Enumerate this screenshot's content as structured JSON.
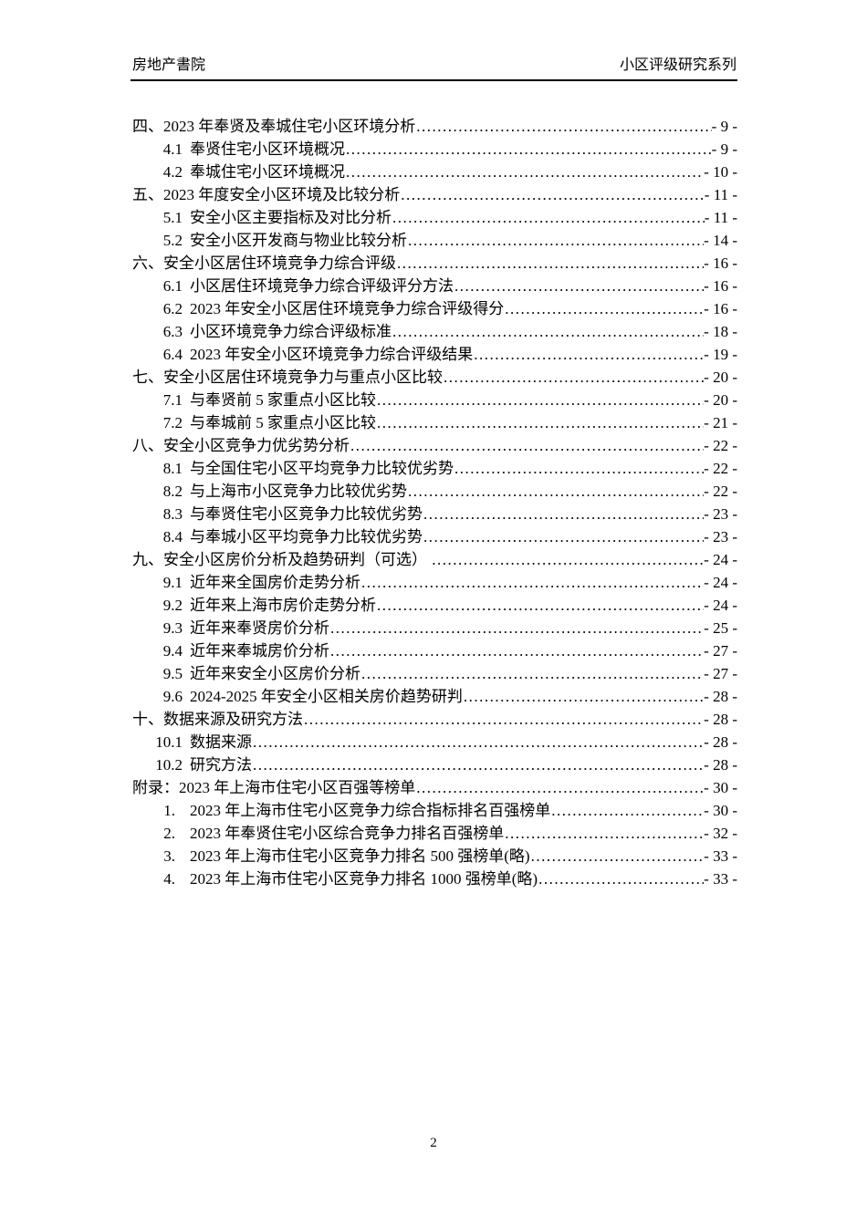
{
  "header": {
    "left": "房地产書院",
    "right": "小区评级研究系列"
  },
  "footer": {
    "page_number": "2"
  },
  "toc": {
    "entries": [
      {
        "level": 1,
        "num": "四、",
        "title": "2023 年奉贤及奉城住宅小区环境分析",
        "page": "- 9 -"
      },
      {
        "level": 2,
        "num": "4.1",
        "title": "奉贤住宅小区环境概况",
        "page": "- 9 -"
      },
      {
        "level": 2,
        "num": "4.2",
        "title": "奉城住宅小区环境概况",
        "page": "- 10 -"
      },
      {
        "level": 1,
        "num": "五、",
        "title": "2023 年度安全小区环境及比较分析",
        "page": "- 11 -"
      },
      {
        "level": 2,
        "num": "5.1",
        "title": "安全小区主要指标及对比分析",
        "page": "- 11 -"
      },
      {
        "level": 2,
        "num": "5.2",
        "title": "安全小区开发商与物业比较分析",
        "page": "- 14 -"
      },
      {
        "level": 1,
        "num": "六、",
        "title": "安全小区居住环境竞争力综合评级",
        "page": "- 16 -"
      },
      {
        "level": 2,
        "num": "6.1",
        "title": "小区居住环境竞争力综合评级评分方法",
        "page": "- 16 -"
      },
      {
        "level": 2,
        "num": "6.2",
        "title": "2023 年安全小区居住环境竞争力综合评级得分",
        "page": "- 16 -"
      },
      {
        "level": 2,
        "num": "6.3",
        "title": "小区环境竞争力综合评级标准",
        "page": "- 18 -"
      },
      {
        "level": 2,
        "num": "6.4",
        "title": "2023 年安全小区环境竞争力综合评级结果",
        "page": "- 19 -"
      },
      {
        "level": 1,
        "num": "七、",
        "title": "安全小区居住环境竞争力与重点小区比较",
        "page": "- 20 -"
      },
      {
        "level": 2,
        "num": "7.1",
        "title": "与奉贤前 5 家重点小区比较",
        "page": "- 20 -"
      },
      {
        "level": 2,
        "num": "7.2",
        "title": "与奉城前 5 家重点小区比较",
        "page": "- 21 -"
      },
      {
        "level": 1,
        "num": "八、",
        "title": "安全小区竞争力优劣势分析",
        "page": "- 22 -"
      },
      {
        "level": 2,
        "num": "8.1",
        "title": "与全国住宅小区平均竞争力比较优劣势",
        "page": "- 22 -"
      },
      {
        "level": 2,
        "num": "8.2",
        "title": "与上海市小区竞争力比较优劣势",
        "page": "- 22 -"
      },
      {
        "level": 2,
        "num": "8.3",
        "title": "与奉贤住宅小区竞争力比较优劣势",
        "page": "- 23 -"
      },
      {
        "level": 2,
        "num": "8.4",
        "title": "与奉城小区平均竞争力比较优劣势",
        "page": "- 23 -"
      },
      {
        "level": 1,
        "num": "九、",
        "title": "安全小区房价分析及趋势研判（可选） ",
        "page": "- 24 -"
      },
      {
        "level": 2,
        "num": "9.1",
        "title": "近年来全国房价走势分析",
        "page": "- 24 -"
      },
      {
        "level": 2,
        "num": "9.2",
        "title": "近年来上海市房价走势分析",
        "page": "- 24 -"
      },
      {
        "level": 2,
        "num": "9.3",
        "title": "近年来奉贤房价分析",
        "page": "- 25 -"
      },
      {
        "level": 2,
        "num": "9.4",
        "title": "近年来奉城房价分析",
        "page": "- 27 -"
      },
      {
        "level": 2,
        "num": "9.5",
        "title": "近年来安全小区房价分析",
        "page": "- 27 -"
      },
      {
        "level": 2,
        "num": "9.6",
        "title": "2024-2025 年安全小区相关房价趋势研判",
        "page": "- 28 -"
      },
      {
        "level": 1,
        "num": "十、",
        "title": "数据来源及研究方法",
        "page": "- 28 -"
      },
      {
        "level": 2,
        "num": "10.1",
        "title": "数据来源",
        "page": "- 28 -"
      },
      {
        "level": 2,
        "num": "10.2",
        "title": "研究方法",
        "page": "- 28 -"
      },
      {
        "level": 1,
        "num": "附录：",
        "title": "2023 年上海市住宅小区百强等榜单",
        "page": "- 30 -"
      },
      {
        "level": 3,
        "num": "1.",
        "title": "2023 年上海市住宅小区竞争力综合指标排名百强榜单",
        "page": "- 30 -"
      },
      {
        "level": 3,
        "num": "2.",
        "title": "2023 年奉贤住宅小区综合竞争力排名百强榜单",
        "page": "- 32 -"
      },
      {
        "level": 3,
        "num": "3.",
        "title": "2023 年上海市住宅小区竞争力排名 500 强榜单(略)",
        "page": "- 33 -"
      },
      {
        "level": 3,
        "num": "4.",
        "title": "2023 年上海市住宅小区竞争力排名 1000 强榜单(略)",
        "page": "- 33 -"
      }
    ]
  }
}
